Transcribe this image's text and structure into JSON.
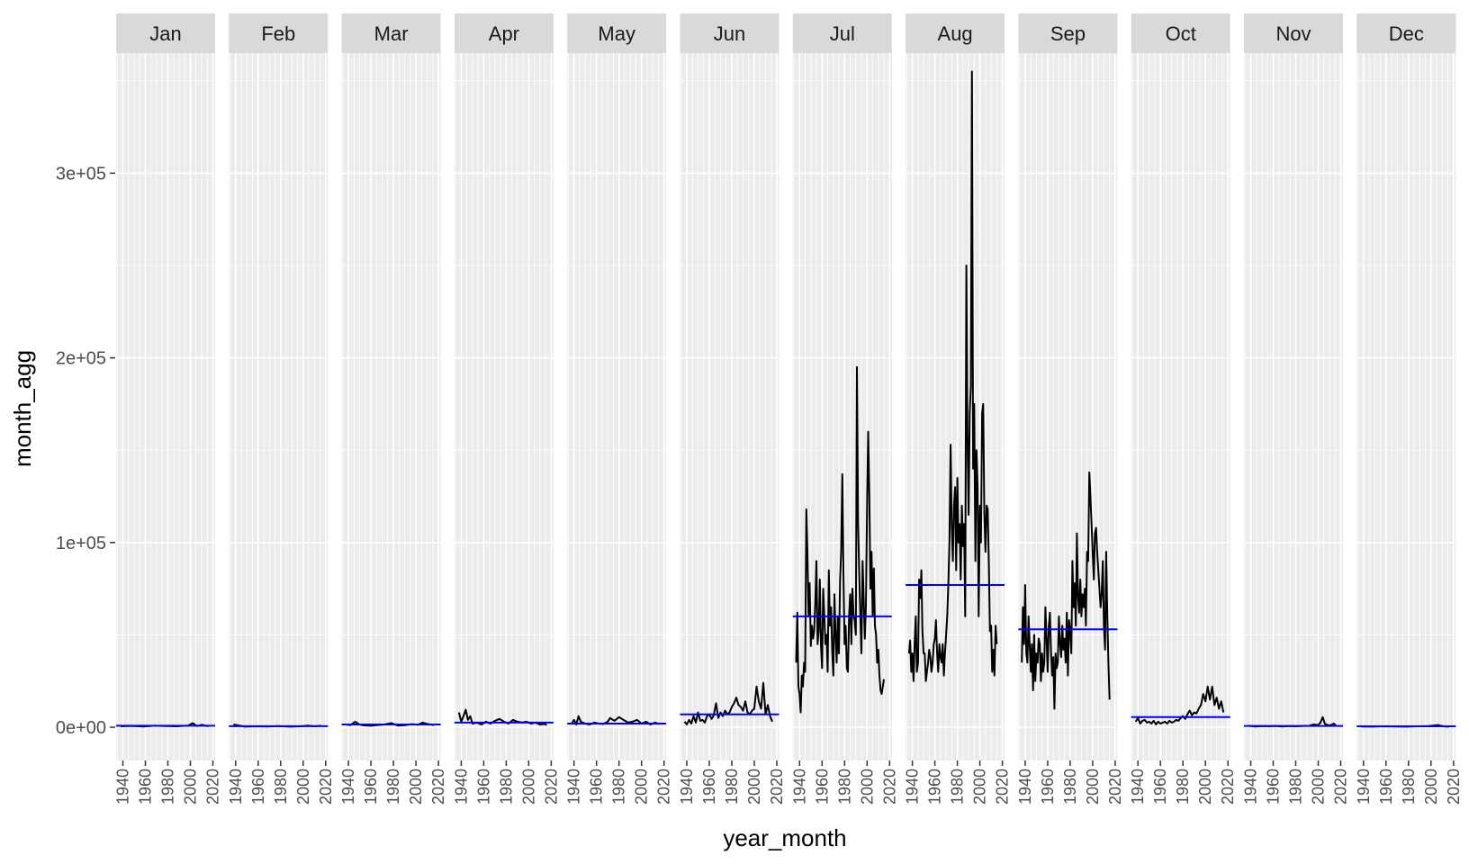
{
  "chart_data": {
    "type": "line",
    "facet_by": "month",
    "xlabel": "year_month",
    "ylabel": "month_agg",
    "ylim": [
      -18000,
      365000
    ],
    "yticks": [
      0,
      100000,
      200000,
      300000
    ],
    "ytick_labels": [
      "0e+00",
      "1e+05",
      "2e+05",
      "3e+05"
    ],
    "xlim": [
      1934,
      2022
    ],
    "xticks": [
      1940,
      1960,
      1980,
      2000,
      2020
    ],
    "xtick_labels": [
      "1940",
      "1960",
      "1980",
      "2000",
      "2020"
    ],
    "grid": true,
    "colors": {
      "panel_bg": "#ebebeb",
      "strip_bg": "#d9d9d9",
      "grid": "#ffffff",
      "series_line": "#000000",
      "mean_line": "#0000ff"
    },
    "panels": [
      {
        "month": "Jan",
        "mean": 800,
        "x": [
          1938,
          1948,
          1958,
          1968,
          1978,
          1988,
          1998,
          2002,
          2006,
          2010,
          2016
        ],
        "y": [
          500,
          700,
          400,
          800,
          600,
          500,
          900,
          2200,
          600,
          1300,
          500
        ]
      },
      {
        "month": "Feb",
        "mean": 600,
        "x": [
          1938,
          1948,
          1958,
          1968,
          1978,
          1988,
          1998,
          2004,
          2010,
          2016
        ],
        "y": [
          1500,
          300,
          500,
          400,
          600,
          300,
          500,
          900,
          500,
          800
        ]
      },
      {
        "month": "Mar",
        "mean": 1500,
        "x": [
          1938,
          1942,
          1946,
          1950,
          1954,
          1960,
          1966,
          1972,
          1978,
          1984,
          1990,
          1996,
          2002,
          2006,
          2010,
          2016
        ],
        "y": [
          1500,
          1200,
          3000,
          1400,
          1000,
          800,
          1200,
          1500,
          2200,
          900,
          1100,
          1700,
          1400,
          2500,
          1800,
          1200
        ]
      },
      {
        "month": "Apr",
        "mean": 2500,
        "x": [
          1938,
          1940,
          1942,
          1944,
          1946,
          1948,
          1950,
          1954,
          1958,
          1962,
          1966,
          1970,
          1974,
          1978,
          1982,
          1986,
          1990,
          1994,
          1998,
          2002,
          2006,
          2010,
          2014,
          2016
        ],
        "y": [
          8000,
          3000,
          6000,
          9500,
          4000,
          6000,
          2000,
          2500,
          1500,
          3000,
          2000,
          3500,
          4500,
          3000,
          2000,
          4000,
          3000,
          2500,
          3000,
          2000,
          2500,
          1500,
          1800,
          1200
        ]
      },
      {
        "month": "May",
        "mean": 2000,
        "x": [
          1938,
          1940,
          1942,
          1944,
          1946,
          1950,
          1954,
          1958,
          1962,
          1966,
          1970,
          1972,
          1976,
          1980,
          1984,
          1988,
          1992,
          1996,
          2000,
          2004,
          2008,
          2012,
          2016
        ],
        "y": [
          2000,
          4000,
          1500,
          6000,
          3000,
          2000,
          1500,
          2500,
          2000,
          1800,
          3000,
          5000,
          3500,
          5500,
          4000,
          2500,
          3000,
          4000,
          2000,
          3000,
          1500,
          2500,
          1800
        ]
      },
      {
        "month": "Jun",
        "mean": 7000,
        "x": [
          1938,
          1940,
          1942,
          1944,
          1946,
          1948,
          1950,
          1952,
          1954,
          1956,
          1958,
          1960,
          1962,
          1964,
          1966,
          1968,
          1970,
          1972,
          1974,
          1976,
          1978,
          1980,
          1982,
          1984,
          1986,
          1988,
          1990,
          1992,
          1994,
          1996,
          1998,
          2000,
          2002,
          2004,
          2006,
          2008,
          2010,
          2012,
          2014,
          2016
        ],
        "y": [
          3000,
          1500,
          4000,
          2000,
          6000,
          2500,
          8000,
          3500,
          4000,
          2500,
          6000,
          7000,
          4500,
          6500,
          13000,
          5000,
          8000,
          6000,
          9000,
          7000,
          8000,
          11000,
          13000,
          16000,
          12000,
          11000,
          9000,
          14000,
          8000,
          7000,
          9000,
          10000,
          22000,
          14000,
          10000,
          24000,
          7000,
          12000,
          6000,
          3000
        ]
      },
      {
        "month": "Jul",
        "mean": 60000,
        "x": [
          1937,
          1938,
          1939,
          1940,
          1941,
          1942,
          1943,
          1944,
          1945,
          1946,
          1947,
          1948,
          1949,
          1950,
          1951,
          1952,
          1953,
          1954,
          1955,
          1956,
          1957,
          1958,
          1959,
          1960,
          1961,
          1962,
          1963,
          1964,
          1965,
          1966,
          1967,
          1968,
          1969,
          1970,
          1971,
          1972,
          1973,
          1974,
          1975,
          1976,
          1977,
          1978,
          1979,
          1980,
          1981,
          1982,
          1983,
          1984,
          1985,
          1986,
          1987,
          1988,
          1989,
          1990,
          1991,
          1992,
          1993,
          1994,
          1995,
          1996,
          1997,
          1998,
          1999,
          2000,
          2001,
          2002,
          2003,
          2004,
          2005,
          2006,
          2007,
          2008,
          2009,
          2010,
          2011,
          2012,
          2013,
          2014,
          2015
        ],
        "y": [
          35000,
          62000,
          22000,
          18000,
          8000,
          28000,
          22000,
          35000,
          30000,
          118000,
          95000,
          60000,
          78000,
          44000,
          55000,
          48000,
          52000,
          68000,
          90000,
          45000,
          52000,
          80000,
          45000,
          32000,
          75000,
          60000,
          45000,
          50000,
          30000,
          85000,
          55000,
          65000,
          42000,
          28000,
          72000,
          50000,
          35000,
          60000,
          40000,
          80000,
          95000,
          137000,
          85000,
          45000,
          55000,
          32000,
          30000,
          60000,
          72000,
          45000,
          75000,
          60000,
          58000,
          50000,
          195000,
          110000,
          85000,
          60000,
          40000,
          90000,
          70000,
          48000,
          65000,
          120000,
          160000,
          125000,
          75000,
          95000,
          60000,
          86000,
          55000,
          50000,
          35000,
          42000,
          28000,
          20000,
          18000,
          22000,
          26000
        ]
      },
      {
        "month": "Aug",
        "mean": 77000,
        "x": [
          1937,
          1938,
          1939,
          1940,
          1941,
          1942,
          1943,
          1944,
          1945,
          1946,
          1947,
          1948,
          1949,
          1950,
          1951,
          1952,
          1953,
          1954,
          1955,
          1956,
          1957,
          1958,
          1959,
          1960,
          1961,
          1962,
          1963,
          1964,
          1965,
          1966,
          1967,
          1968,
          1969,
          1970,
          1971,
          1972,
          1973,
          1974,
          1975,
          1976,
          1977,
          1978,
          1979,
          1980,
          1981,
          1982,
          1983,
          1984,
          1985,
          1986,
          1987,
          1988,
          1989,
          1990,
          1991,
          1992,
          1993,
          1994,
          1995,
          1996,
          1997,
          1998,
          1999,
          2000,
          2001,
          2002,
          2003,
          2004,
          2005,
          2006,
          2007,
          2008,
          2009,
          2010,
          2011,
          2012,
          2013,
          2014,
          2015
        ],
        "y": [
          40000,
          47000,
          30000,
          40000,
          25000,
          45000,
          60000,
          30000,
          35000,
          80000,
          70000,
          85000,
          52000,
          40000,
          40000,
          25000,
          30000,
          35000,
          42000,
          38000,
          30000,
          35000,
          45000,
          48000,
          58000,
          40000,
          30000,
          45000,
          38000,
          35000,
          45000,
          28000,
          40000,
          50000,
          60000,
          78000,
          100000,
          153000,
          110000,
          90000,
          120000,
          130000,
          85000,
          135000,
          100000,
          110000,
          80000,
          120000,
          98000,
          110000,
          60000,
          250000,
          160000,
          115000,
          170000,
          185000,
          355000,
          140000,
          175000,
          90000,
          150000,
          130000,
          60000,
          120000,
          100000,
          170000,
          175000,
          115000,
          95000,
          120000,
          118000,
          88000,
          52000,
          55000,
          30000,
          42000,
          28000,
          55000,
          45000
        ]
      },
      {
        "month": "Sep",
        "mean": 53000,
        "x": [
          1937,
          1938,
          1939,
          1940,
          1941,
          1942,
          1943,
          1944,
          1945,
          1946,
          1947,
          1948,
          1949,
          1950,
          1951,
          1952,
          1953,
          1954,
          1955,
          1956,
          1957,
          1958,
          1959,
          1960,
          1961,
          1962,
          1963,
          1964,
          1965,
          1966,
          1967,
          1968,
          1969,
          1970,
          1971,
          1972,
          1973,
          1974,
          1975,
          1976,
          1977,
          1978,
          1979,
          1980,
          1981,
          1982,
          1983,
          1984,
          1985,
          1986,
          1987,
          1988,
          1989,
          1990,
          1991,
          1992,
          1993,
          1994,
          1995,
          1996,
          1997,
          1998,
          1999,
          2000,
          2001,
          2002,
          2003,
          2004,
          2005,
          2006,
          2007,
          2008,
          2009,
          2010,
          2011,
          2012,
          2013,
          2014,
          2015
        ],
        "y": [
          35000,
          65000,
          45000,
          77000,
          40000,
          35000,
          60000,
          45000,
          30000,
          45000,
          20000,
          50000,
          25000,
          40000,
          35000,
          48000,
          45000,
          25000,
          40000,
          30000,
          35000,
          65000,
          48000,
          30000,
          55000,
          62000,
          40000,
          28000,
          38000,
          10000,
          40000,
          32000,
          35000,
          60000,
          45000,
          38000,
          55000,
          42000,
          48000,
          35000,
          62000,
          28000,
          58000,
          52000,
          40000,
          90000,
          65000,
          78000,
          55000,
          105000,
          70000,
          62000,
          80000,
          60000,
          72000,
          65000,
          75000,
          55000,
          95000,
          90000,
          138000,
          125000,
          110000,
          95000,
          80000,
          105000,
          108000,
          95000,
          85000,
          75000,
          65000,
          72000,
          90000,
          55000,
          42000,
          95000,
          60000,
          35000,
          15000
        ]
      },
      {
        "month": "Oct",
        "mean": 5500,
        "x": [
          1938,
          1940,
          1942,
          1944,
          1946,
          1948,
          1950,
          1952,
          1954,
          1956,
          1958,
          1960,
          1962,
          1964,
          1966,
          1968,
          1970,
          1972,
          1974,
          1976,
          1978,
          1980,
          1982,
          1984,
          1986,
          1988,
          1990,
          1992,
          1994,
          1996,
          1998,
          2000,
          2002,
          2004,
          2006,
          2008,
          2010,
          2012,
          2014,
          2016
        ],
        "y": [
          3000,
          5000,
          2000,
          3500,
          4000,
          2500,
          3000,
          2000,
          3500,
          1500,
          3000,
          2000,
          2500,
          3000,
          2000,
          3500,
          2500,
          3000,
          4000,
          3500,
          5000,
          6000,
          4500,
          7000,
          9000,
          6500,
          8000,
          7500,
          10000,
          12000,
          18000,
          14000,
          22000,
          15000,
          22000,
          12000,
          16000,
          10000,
          14000,
          8000
        ]
      },
      {
        "month": "Nov",
        "mean": 700,
        "x": [
          1938,
          1944,
          1950,
          1956,
          1962,
          1968,
          1974,
          1980,
          1986,
          1992,
          1996,
          2000,
          2002,
          2004,
          2006,
          2010,
          2014,
          2016
        ],
        "y": [
          800,
          400,
          600,
          500,
          700,
          400,
          600,
          500,
          700,
          800,
          1500,
          1200,
          2500,
          5500,
          1800,
          900,
          2000,
          600
        ]
      },
      {
        "month": "Dec",
        "mean": 500,
        "x": [
          1938,
          1948,
          1958,
          1968,
          1978,
          1988,
          1998,
          2006,
          2012,
          2016
        ],
        "y": [
          400,
          300,
          500,
          400,
          300,
          500,
          600,
          1200,
          400,
          300
        ]
      }
    ]
  }
}
